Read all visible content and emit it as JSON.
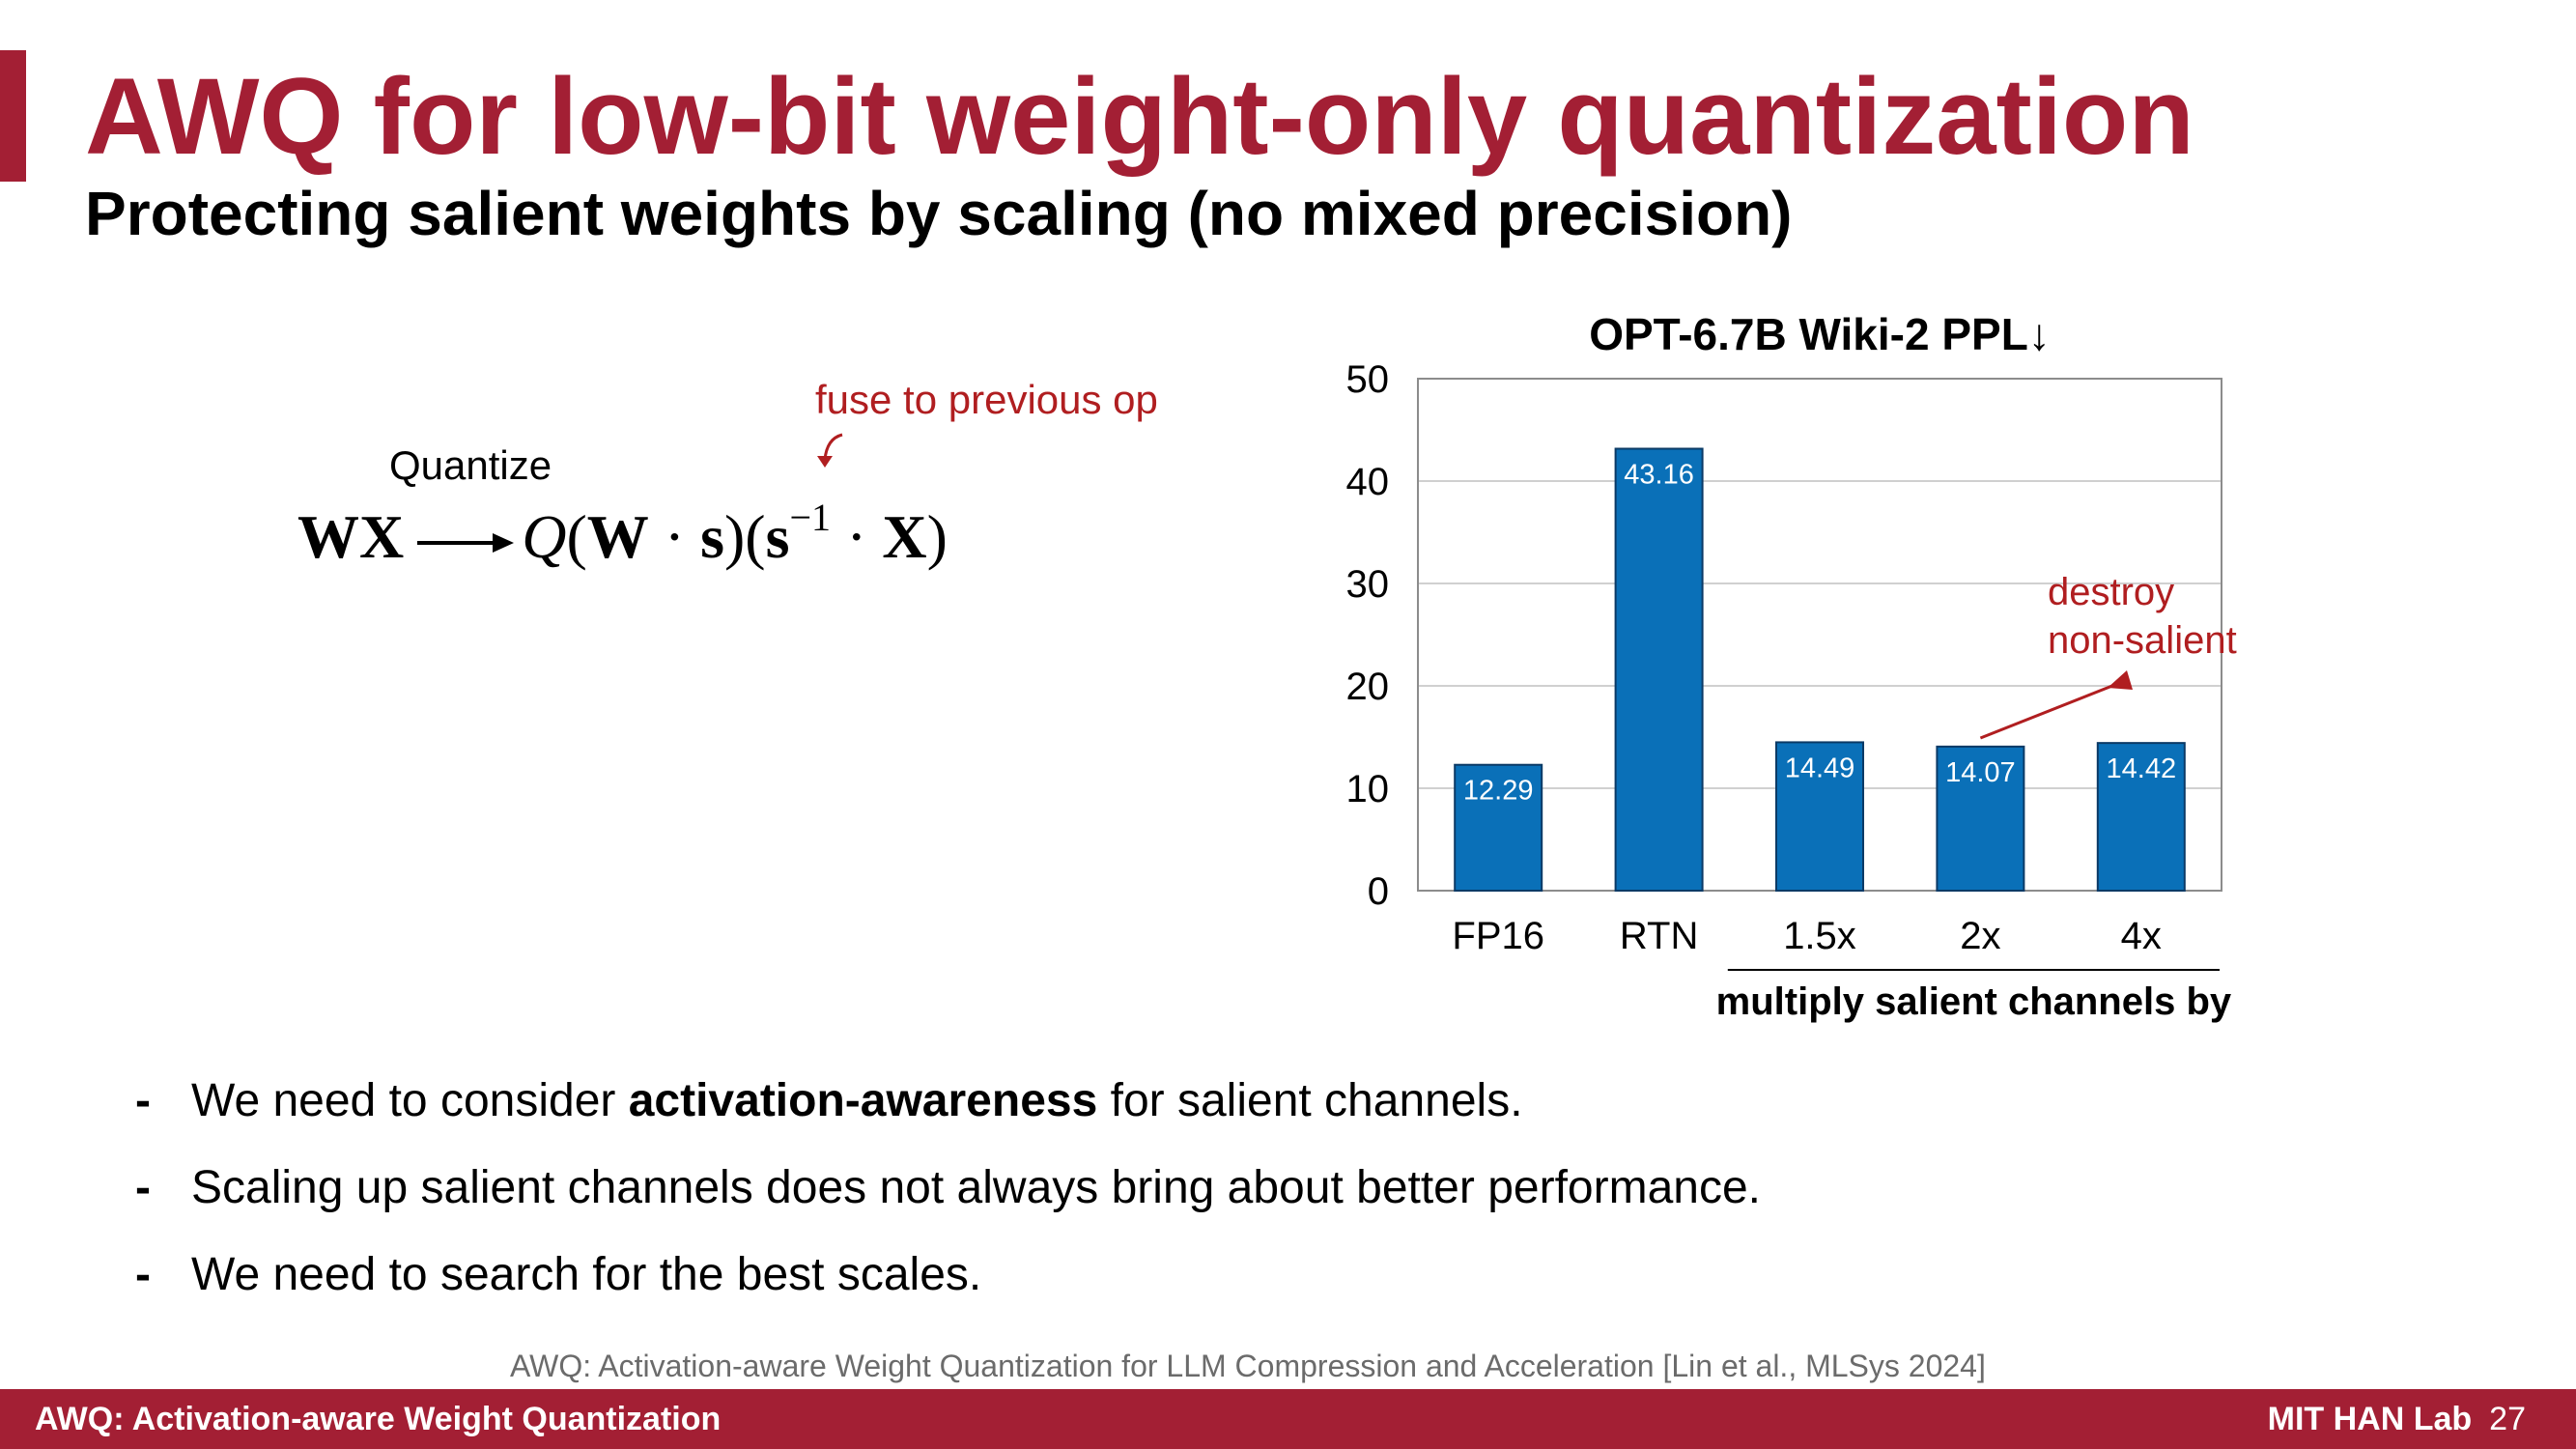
{
  "slide": {
    "title": "AWQ for low-bit weight-only quantization",
    "subtitle": "Protecting salient weights by scaling (no mixed precision)",
    "accent_color": "#a31f34"
  },
  "formula": {
    "fuse_note": "fuse to previous op",
    "quantize_label": "Quantize",
    "lhs": "WX",
    "q": "Q",
    "open": "(",
    "w": "W",
    "dot1": " · ",
    "s": "s",
    "close_open": ")(",
    "s2": "s",
    "exponent": "−1",
    "dot2": " · ",
    "x": "X",
    "close": ")"
  },
  "chart_data": {
    "type": "bar",
    "title": "OPT-6.7B Wiki-2 PPL↓",
    "categories": [
      "FP16",
      "RTN",
      "1.5x",
      "2x",
      "4x"
    ],
    "values": [
      12.29,
      43.16,
      14.49,
      14.07,
      14.42
    ],
    "value_labels": [
      "12.29",
      "43.16",
      "14.49",
      "14.07",
      "14.42"
    ],
    "yticks": [
      "0",
      "10",
      "20",
      "30",
      "40",
      "50"
    ],
    "ylim": [
      0,
      50
    ],
    "group_label": "multiply salient channels by",
    "annotation": [
      "destroy",
      "non-salient"
    ],
    "bar_color": "#0a70b8",
    "annotation_color": "#b01e20",
    "grid": true
  },
  "bullets": [
    {
      "dash": "-",
      "pre": "We need to consider ",
      "bold": "activation-awareness",
      "post": " for salient channels."
    },
    {
      "dash": "-",
      "pre": "Scaling up salient channels does not always bring about better performance.",
      "bold": "",
      "post": ""
    },
    {
      "dash": "-",
      "pre": "We need to search for the best scales.",
      "bold": "",
      "post": ""
    }
  ],
  "citation": "AWQ: Activation-aware Weight Quantization for LLM Compression and Acceleration  [Lin et al., MLSys 2024]",
  "footer": {
    "left": "AWQ: Activation-aware Weight Quantization",
    "lab": "MIT HAN Lab",
    "page": "27"
  }
}
